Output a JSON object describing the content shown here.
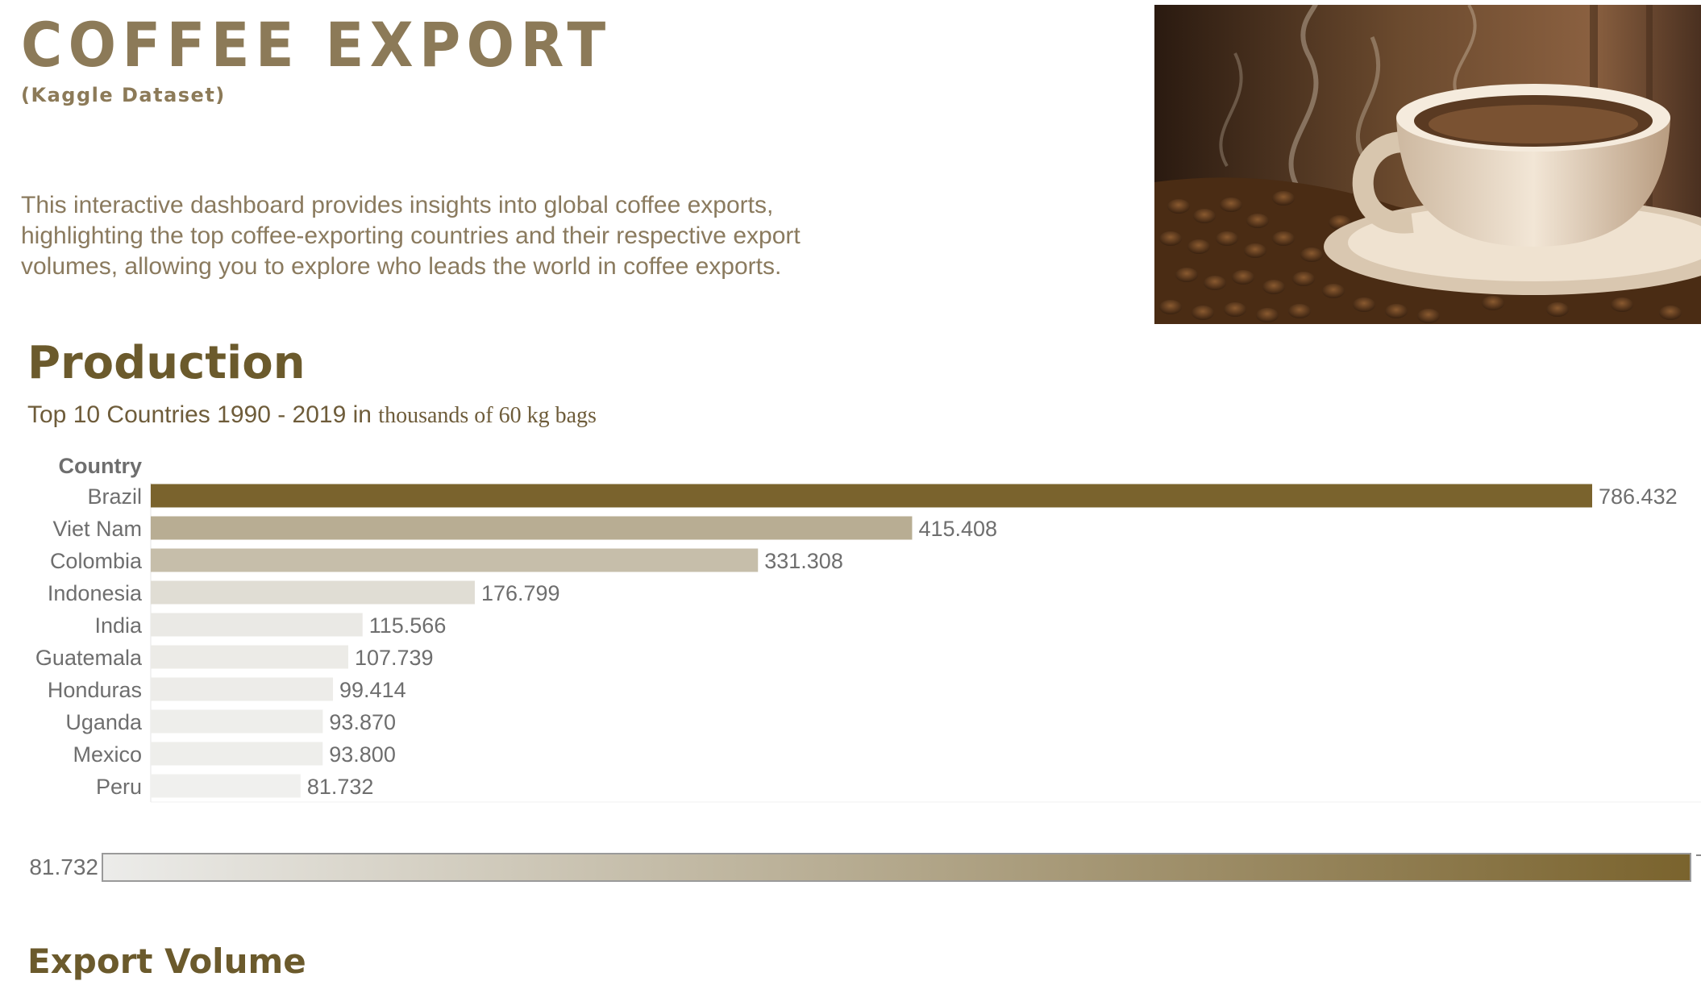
{
  "header": {
    "title": "COFFEE EXPORT",
    "subtitle": "(Kaggle Dataset)",
    "description": "This interactive dashboard provides insights into global coffee exports, highlighting the top coffee-exporting countries and their respective export volumes, allowing you to explore who leads the world in coffee exports."
  },
  "image": {
    "subject": "coffee-cup-with-beans-photo"
  },
  "production": {
    "title": "Production",
    "subtitle_main": "Top 10 Countries 1990 - 2019 in ",
    "subtitle_unit": "thousands of 60 kg bags"
  },
  "legend": {
    "min_label": "81.732",
    "color_low": "#ececea",
    "color_high": "#7a632d"
  },
  "next_section": {
    "title": "Export Volume"
  },
  "chart_data": {
    "type": "bar",
    "orientation": "horizontal",
    "axis_header": "Country",
    "categories": [
      "Brazil",
      "Viet Nam",
      "Colombia",
      "Indonesia",
      "India",
      "Guatemala",
      "Honduras",
      "Uganda",
      "Mexico",
      "Peru"
    ],
    "values": [
      786.432,
      415.408,
      331.308,
      176.799,
      115.566,
      107.739,
      99.414,
      93.87,
      93.8,
      81.732
    ],
    "value_labels": [
      "786.432",
      "415.408",
      "331.308",
      "176.799",
      "115.566",
      "107.739",
      "99.414",
      "93.870",
      "93.800",
      "81.732"
    ],
    "xlim": [
      0,
      786.432
    ],
    "color_scale": {
      "min": 81.732,
      "max": 786.432,
      "low": "#f0f0ee",
      "high": "#7a632d"
    },
    "grid": false,
    "legend": "bottom"
  }
}
